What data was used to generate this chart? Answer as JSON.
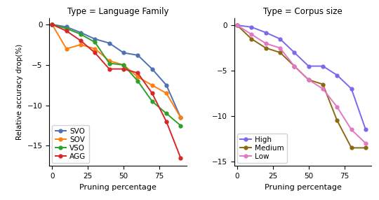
{
  "x": [
    0,
    10,
    20,
    30,
    40,
    50,
    60,
    70,
    80,
    90
  ],
  "left_title": "Type = Language Family",
  "right_title": "Type = Corpus size",
  "xlabel": "Pruning percentage",
  "ylabel": "Relative accuracy drop(%)",
  "left_series": {
    "SVO": {
      "color": "#4c72b0",
      "values": [
        0,
        -0.3,
        -1.0,
        -1.8,
        -2.3,
        -3.5,
        -3.8,
        -5.5,
        -7.5,
        -11.5
      ]
    },
    "SOV": {
      "color": "#ff7f0e",
      "values": [
        0,
        -3.0,
        -2.5,
        -3.0,
        -4.5,
        -5.0,
        -6.5,
        -7.5,
        -8.5,
        -11.5
      ]
    },
    "VSO": {
      "color": "#2ca02c",
      "values": [
        0,
        -0.5,
        -1.2,
        -2.2,
        -4.8,
        -5.0,
        -7.0,
        -9.5,
        -11.0,
        -12.5
      ]
    },
    "AGG": {
      "color": "#d62728",
      "values": [
        0,
        -0.8,
        -2.0,
        -3.5,
        -5.5,
        -5.5,
        -6.0,
        -8.5,
        -12.0,
        -16.5
      ]
    }
  },
  "right_series": {
    "High": {
      "color": "#7b68ee",
      "values": [
        0,
        -0.2,
        -0.8,
        -1.5,
        -3.0,
        -4.5,
        -4.5,
        -5.5,
        -7.0,
        -11.5
      ]
    },
    "Medium": {
      "color": "#8b6914",
      "values": [
        0,
        -1.5,
        -2.5,
        -3.0,
        -4.5,
        -6.0,
        -6.5,
        -10.5,
        -13.5,
        -13.5
      ]
    },
    "Low": {
      "color": "#e377c2",
      "values": [
        0,
        -1.0,
        -2.0,
        -2.5,
        -4.5,
        -6.0,
        -7.0,
        -9.0,
        -11.5,
        -13.0
      ]
    }
  },
  "ylim_left": [
    -17.5,
    0.8
  ],
  "ylim_right": [
    -15.5,
    0.8
  ],
  "yticks_left": [
    0,
    -5,
    -10,
    -15
  ],
  "yticks_right": [
    0,
    -5,
    -10,
    -15
  ],
  "xlim": [
    -2,
    94
  ],
  "xticks": [
    0,
    25,
    50,
    75
  ]
}
